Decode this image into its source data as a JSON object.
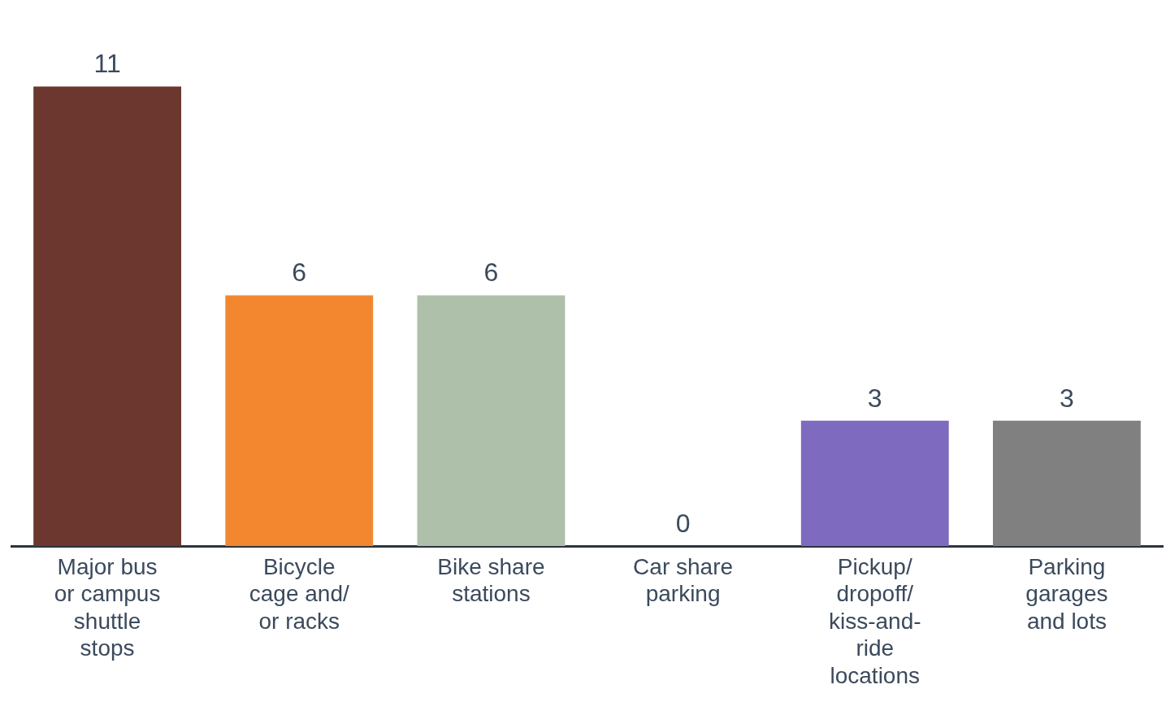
{
  "chart_data": {
    "type": "bar",
    "categories": [
      "Major bus or campus shuttle stops",
      "Bicycle cage and/or racks",
      "Bike share stations",
      "Car share parking",
      "Pickup/dropoff/kiss-and-ride locations",
      "Parking garages and lots"
    ],
    "values": [
      11,
      6,
      6,
      0,
      3,
      3
    ],
    "colors": [
      "#6b372e",
      "#f2872f",
      "#aebfaa",
      "#4a7fb0",
      "#7e6bbf",
      "#808080"
    ],
    "data_labels": true,
    "grid": false,
    "legend": false
  }
}
